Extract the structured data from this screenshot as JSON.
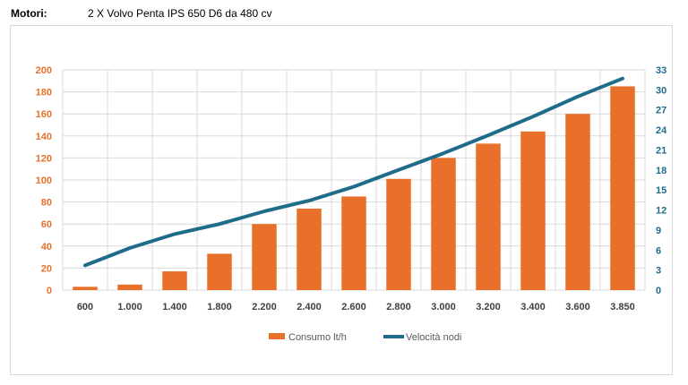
{
  "header": {
    "label": "Motori:",
    "value": "2 X Volvo Penta IPS  650 D6 da 480 cv"
  },
  "colors": {
    "bar": "#e8702a",
    "line": "#1f6b8a",
    "grid": "#d9d9d9"
  },
  "chart_data": {
    "type": "bar",
    "title": "",
    "xlabel": "",
    "ylabel": "",
    "y2label": "",
    "categories": [
      "600",
      "1.000",
      "1.400",
      "1.800",
      "2.200",
      "2.400",
      "2.600",
      "2.800",
      "3.000",
      "3.200",
      "3.400",
      "3.600",
      "3.850"
    ],
    "ylim": [
      0,
      200
    ],
    "yticks": [
      "0",
      "20",
      "40",
      "60",
      "80",
      "100",
      "120",
      "140",
      "160",
      "180",
      "200"
    ],
    "y2lim": [
      0,
      33
    ],
    "y2ticks": [
      "0",
      "3",
      "6",
      "9",
      "12",
      "15",
      "18",
      "21",
      "24",
      "27",
      "30",
      "33"
    ],
    "grid": true,
    "legend": "bottom",
    "series": [
      {
        "name": "Consumo lt/h",
        "type": "bar",
        "axis": "left",
        "values": [
          3,
          5,
          17,
          33,
          60,
          74,
          85,
          101,
          120,
          133,
          144,
          160,
          185
        ]
      },
      {
        "name": "Velocità nodi",
        "type": "line",
        "axis": "right",
        "values": [
          3.7,
          6.3,
          8.4,
          9.9,
          11.8,
          13.4,
          15.5,
          18.0,
          20.5,
          23.2,
          26.0,
          29.0,
          31.7
        ]
      }
    ]
  }
}
